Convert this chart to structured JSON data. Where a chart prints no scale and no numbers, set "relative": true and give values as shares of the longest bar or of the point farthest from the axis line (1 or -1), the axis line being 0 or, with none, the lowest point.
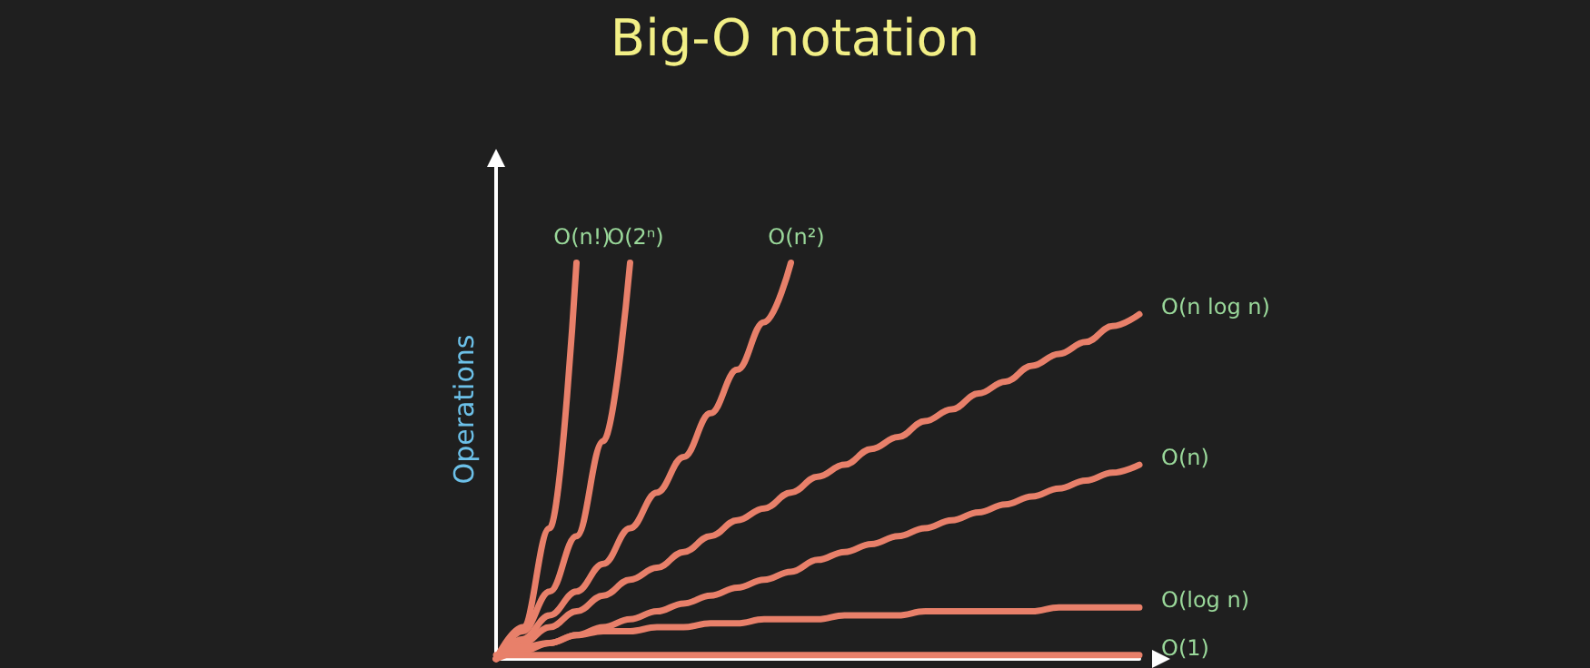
{
  "chart_data": {
    "type": "line",
    "title": "Big-O notation",
    "ylabel": "Operations",
    "relative": true,
    "legend": false,
    "grid": false,
    "tick_labels": false,
    "marker": "none",
    "line_style": "solid",
    "categories": [
      null,
      null,
      null,
      null,
      null,
      null,
      null,
      null,
      null,
      null,
      null,
      null,
      null,
      null,
      null,
      null,
      null,
      null,
      null,
      null,
      null,
      null,
      null,
      null,
      null
    ],
    "series": [
      {
        "name": "O(n!)",
        "color": "#e8806a",
        "values": [
          0,
          0.08,
          0.33,
          1,
          null,
          null,
          null,
          null,
          null,
          null,
          null,
          null,
          null,
          null,
          null,
          null,
          null,
          null,
          null,
          null,
          null,
          null,
          null,
          null,
          null
        ]
      },
      {
        "name": "O(2ⁿ)",
        "color": "#e8806a",
        "values": [
          0,
          0.07,
          0.17,
          0.31,
          0.55,
          1,
          null,
          null,
          null,
          null,
          null,
          null,
          null,
          null,
          null,
          null,
          null,
          null,
          null,
          null,
          null,
          null,
          null,
          null,
          null
        ]
      },
      {
        "name": "O(n²)",
        "color": "#e8806a",
        "values": [
          0,
          0.05,
          0.11,
          0.17,
          0.24,
          0.33,
          0.42,
          0.51,
          0.62,
          0.73,
          0.85,
          1,
          null,
          null,
          null,
          null,
          null,
          null,
          null,
          null,
          null,
          null,
          null,
          null,
          null
        ]
      },
      {
        "name": "O(n log n)",
        "color": "#e8806a",
        "values": [
          0,
          0.04,
          0.08,
          0.12,
          0.16,
          0.2,
          0.23,
          0.27,
          0.31,
          0.35,
          0.38,
          0.42,
          0.46,
          0.49,
          0.53,
          0.56,
          0.6,
          0.63,
          0.67,
          0.7,
          0.74,
          0.77,
          0.8,
          0.84,
          0.87
        ]
      },
      {
        "name": "O(n)",
        "color": "#e8806a",
        "values": [
          0,
          0.02,
          0.04,
          0.06,
          0.08,
          0.1,
          0.12,
          0.14,
          0.16,
          0.18,
          0.2,
          0.22,
          0.25,
          0.27,
          0.29,
          0.31,
          0.33,
          0.35,
          0.37,
          0.39,
          0.41,
          0.43,
          0.45,
          0.47,
          0.49
        ]
      },
      {
        "name": "O(log n)",
        "color": "#e8806a",
        "values": [
          0,
          0.03,
          0.04,
          0.06,
          0.07,
          0.07,
          0.08,
          0.08,
          0.09,
          0.09,
          0.1,
          0.1,
          0.1,
          0.11,
          0.11,
          0.11,
          0.12,
          0.12,
          0.12,
          0.12,
          0.12,
          0.13,
          0.13,
          0.13,
          0.13
        ]
      },
      {
        "name": "O(1)",
        "color": "#e8806a",
        "values": [
          0.01,
          0.01,
          0.01,
          0.01,
          0.01,
          0.01,
          0.01,
          0.01,
          0.01,
          0.01,
          0.01,
          0.01,
          0.01,
          0.01,
          0.01,
          0.01,
          0.01,
          0.01,
          0.01,
          0.01,
          0.01,
          0.01,
          0.01,
          0.01,
          0.01
        ]
      }
    ]
  }
}
